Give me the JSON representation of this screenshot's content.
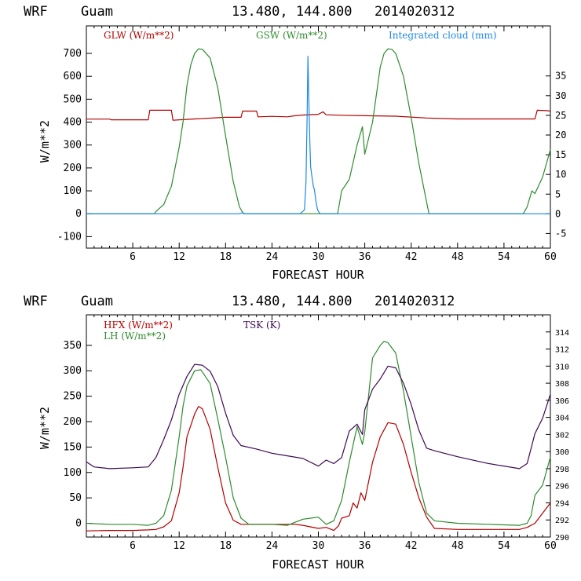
{
  "colors": {
    "red": "#b30000",
    "green": "#2e8b2e",
    "blue": "#1e88e5",
    "purple": "#3d0a52",
    "black": "#000000"
  },
  "chart_data": [
    {
      "type": "line",
      "header": {
        "model": "WRF",
        "location": "Guam",
        "coords": "13.480, 144.800",
        "init": "2014020312"
      },
      "xlabel": "FORECAST HOUR",
      "ylabel": "W/m**2",
      "xlim": [
        0,
        60
      ],
      "xticks": [
        6,
        12,
        18,
        24,
        30,
        36,
        42,
        48,
        54,
        60
      ],
      "ylim": [
        -150,
        820
      ],
      "yticks": [
        -100,
        0,
        100,
        200,
        300,
        400,
        500,
        600,
        700
      ],
      "y2lim": [
        -8.7,
        47.7
      ],
      "y2ticks": [
        -5,
        0,
        5,
        10,
        15,
        20,
        25,
        30,
        35
      ],
      "series": [
        {
          "name": "GLW (W/m**2)",
          "color": "red",
          "axis": "left",
          "points": [
            [
              0,
              413
            ],
            [
              3,
              413
            ],
            [
              3.2,
              410
            ],
            [
              8,
              410
            ],
            [
              8.2,
              452
            ],
            [
              11,
              452
            ],
            [
              11.2,
              408
            ],
            [
              12,
              410
            ],
            [
              14,
              414
            ],
            [
              18,
              421
            ],
            [
              20,
              421
            ],
            [
              20.2,
              448
            ],
            [
              22,
              448
            ],
            [
              22.2,
              423
            ],
            [
              24,
              425
            ],
            [
              26,
              423
            ],
            [
              27,
              428
            ],
            [
              28,
              431
            ],
            [
              30,
              434
            ],
            [
              30.6,
              445
            ],
            [
              31,
              432
            ],
            [
              33,
              430
            ],
            [
              36,
              428
            ],
            [
              40,
              426
            ],
            [
              44,
              418
            ],
            [
              48,
              414
            ],
            [
              52,
              414
            ],
            [
              58,
              414
            ],
            [
              58.3,
              452
            ],
            [
              59.5,
              450
            ],
            [
              60,
              448
            ]
          ]
        },
        {
          "name": "GSW (W/m**2)",
          "color": "green",
          "axis": "left",
          "points": [
            [
              0,
              0
            ],
            [
              8.8,
              0
            ],
            [
              9,
              10
            ],
            [
              10,
              40
            ],
            [
              11,
              120
            ],
            [
              12,
              290
            ],
            [
              12.5,
              400
            ],
            [
              13,
              560
            ],
            [
              13.5,
              650
            ],
            [
              14,
              700
            ],
            [
              14.5,
              720
            ],
            [
              15,
              718
            ],
            [
              16,
              680
            ],
            [
              17,
              550
            ],
            [
              18,
              340
            ],
            [
              19,
              140
            ],
            [
              19.8,
              30
            ],
            [
              20.3,
              0
            ],
            [
              32.5,
              0
            ],
            [
              33,
              100
            ],
            [
              34,
              150
            ],
            [
              35,
              300
            ],
            [
              35.7,
              380
            ],
            [
              36,
              260
            ],
            [
              37,
              400
            ],
            [
              38,
              640
            ],
            [
              38.5,
              700
            ],
            [
              39,
              720
            ],
            [
              39.5,
              718
            ],
            [
              40,
              700
            ],
            [
              41,
              600
            ],
            [
              42,
              420
            ],
            [
              43,
              220
            ],
            [
              44,
              50
            ],
            [
              44.3,
              0
            ],
            [
              56.5,
              0
            ],
            [
              57,
              30
            ],
            [
              57.6,
              100
            ],
            [
              58,
              88
            ],
            [
              59,
              160
            ],
            [
              60,
              280
            ]
          ]
        },
        {
          "name": "Integrated cloud (mm)",
          "color": "blue",
          "axis": "right",
          "points": [
            [
              0,
              0
            ],
            [
              19.8,
              0
            ],
            [
              20.2,
              0.3
            ],
            [
              20.5,
              0
            ],
            [
              27.6,
              0
            ],
            [
              27.8,
              0.3
            ],
            [
              28.2,
              1
            ],
            [
              28.4,
              8
            ],
            [
              28.55,
              25
            ],
            [
              28.65,
              40
            ],
            [
              28.75,
              30
            ],
            [
              28.9,
              18
            ],
            [
              29,
              12
            ],
            [
              29.2,
              9
            ],
            [
              29.35,
              7
            ],
            [
              29.5,
              6
            ],
            [
              29.7,
              3
            ],
            [
              29.9,
              1
            ],
            [
              30.2,
              0
            ],
            [
              60,
              0
            ]
          ]
        }
      ]
    },
    {
      "type": "line",
      "header": {
        "model": "WRF",
        "location": "Guam",
        "coords": "13.480, 144.800",
        "init": "2014020312"
      },
      "xlabel": "FORECAST HOUR",
      "ylabel": "W/m**2",
      "xlim": [
        0,
        60
      ],
      "xticks": [
        6,
        12,
        18,
        24,
        30,
        36,
        42,
        48,
        54,
        60
      ],
      "ylim": [
        -27,
        410
      ],
      "yticks": [
        0,
        50,
        100,
        150,
        200,
        250,
        300,
        350
      ],
      "y2lim": [
        290,
        316
      ],
      "y2ticks": [
        290,
        292,
        294,
        296,
        298,
        300,
        302,
        304,
        306,
        308,
        310,
        312,
        314
      ],
      "series": [
        {
          "name": "HFX (W/m**2)",
          "color": "red",
          "axis": "left",
          "points": [
            [
              0,
              -15
            ],
            [
              3,
              -14
            ],
            [
              6,
              -14
            ],
            [
              8,
              -13
            ],
            [
              9,
              -12
            ],
            [
              10,
              -7
            ],
            [
              11,
              5
            ],
            [
              12,
              60
            ],
            [
              12.5,
              110
            ],
            [
              13,
              170
            ],
            [
              14,
              215
            ],
            [
              14.5,
              230
            ],
            [
              15,
              225
            ],
            [
              16,
              185
            ],
            [
              17,
              110
            ],
            [
              18,
              40
            ],
            [
              19,
              6
            ],
            [
              20,
              -2
            ],
            [
              24,
              -2
            ],
            [
              27,
              -2
            ],
            [
              28,
              -4
            ],
            [
              30,
              -10
            ],
            [
              31,
              -8
            ],
            [
              32,
              -14
            ],
            [
              32.6,
              -5
            ],
            [
              33,
              10
            ],
            [
              34,
              15
            ],
            [
              34.5,
              40
            ],
            [
              35,
              30
            ],
            [
              35.5,
              60
            ],
            [
              36,
              45
            ],
            [
              37,
              120
            ],
            [
              38,
              170
            ],
            [
              39,
              198
            ],
            [
              40,
              195
            ],
            [
              41,
              155
            ],
            [
              42,
              100
            ],
            [
              43,
              50
            ],
            [
              44,
              12
            ],
            [
              45,
              -10
            ],
            [
              48,
              -12
            ],
            [
              52,
              -12
            ],
            [
              56,
              -12
            ],
            [
              57,
              -8
            ],
            [
              58,
              0
            ],
            [
              59,
              20
            ],
            [
              60,
              40
            ]
          ]
        },
        {
          "name": "LH (W/m**2)",
          "color": "green",
          "axis": "left",
          "points": [
            [
              0,
              0
            ],
            [
              3,
              -2
            ],
            [
              6,
              -2
            ],
            [
              8,
              -4
            ],
            [
              9,
              0
            ],
            [
              10,
              15
            ],
            [
              11,
              65
            ],
            [
              12,
              170
            ],
            [
              12.5,
              230
            ],
            [
              13,
              270
            ],
            [
              14,
              300
            ],
            [
              14.8,
              302
            ],
            [
              16,
              275
            ],
            [
              17,
              205
            ],
            [
              18,
              130
            ],
            [
              19,
              50
            ],
            [
              20,
              10
            ],
            [
              21,
              -2
            ],
            [
              24,
              -2
            ],
            [
              26,
              -4
            ],
            [
              27,
              2
            ],
            [
              28,
              8
            ],
            [
              29,
              10
            ],
            [
              30,
              12
            ],
            [
              31,
              -2
            ],
            [
              32,
              5
            ],
            [
              33,
              45
            ],
            [
              34,
              120
            ],
            [
              35,
              190
            ],
            [
              35.7,
              155
            ],
            [
              36,
              180
            ],
            [
              37,
              325
            ],
            [
              38,
              350
            ],
            [
              38.5,
              358
            ],
            [
              39,
              355
            ],
            [
              40,
              335
            ],
            [
              41,
              260
            ],
            [
              42,
              170
            ],
            [
              43,
              80
            ],
            [
              44,
              20
            ],
            [
              45,
              5
            ],
            [
              48,
              0
            ],
            [
              52,
              -2
            ],
            [
              56,
              -4
            ],
            [
              57,
              0
            ],
            [
              57.5,
              15
            ],
            [
              58,
              55
            ],
            [
              59,
              75
            ],
            [
              60,
              130
            ]
          ]
        },
        {
          "name": "TSK (K)",
          "color": "purple",
          "axis": "right",
          "points": [
            [
              0,
              298.8
            ],
            [
              1,
              298.2
            ],
            [
              3,
              298.0
            ],
            [
              6,
              298.1
            ],
            [
              8,
              298.2
            ],
            [
              9,
              299.3
            ],
            [
              10,
              301.4
            ],
            [
              11,
              303.7
            ],
            [
              12,
              306.7
            ],
            [
              13,
              308.8
            ],
            [
              14,
              310.2
            ],
            [
              15,
              310.1
            ],
            [
              16,
              309.4
            ],
            [
              17,
              307.6
            ],
            [
              18,
              304.5
            ],
            [
              19,
              301.9
            ],
            [
              20,
              300.7
            ],
            [
              22,
              300.3
            ],
            [
              24,
              299.8
            ],
            [
              26,
              299.5
            ],
            [
              28,
              299.2
            ],
            [
              30,
              298.3
            ],
            [
              31,
              299.0
            ],
            [
              32,
              298.6
            ],
            [
              33,
              299.3
            ],
            [
              34,
              302.4
            ],
            [
              35,
              303.2
            ],
            [
              35.7,
              302.0
            ],
            [
              36,
              304.9
            ],
            [
              37,
              307.3
            ],
            [
              38,
              308.5
            ],
            [
              39,
              310.0
            ],
            [
              40,
              309.8
            ],
            [
              41,
              308.0
            ],
            [
              42,
              305.5
            ],
            [
              43,
              302.5
            ],
            [
              44,
              300.4
            ],
            [
              45,
              300.1
            ],
            [
              48,
              299.4
            ],
            [
              52,
              298.6
            ],
            [
              56,
              298.0
            ],
            [
              57,
              298.6
            ],
            [
              58,
              302.1
            ],
            [
              59,
              303.9
            ],
            [
              60,
              306.7
            ]
          ]
        }
      ]
    }
  ]
}
